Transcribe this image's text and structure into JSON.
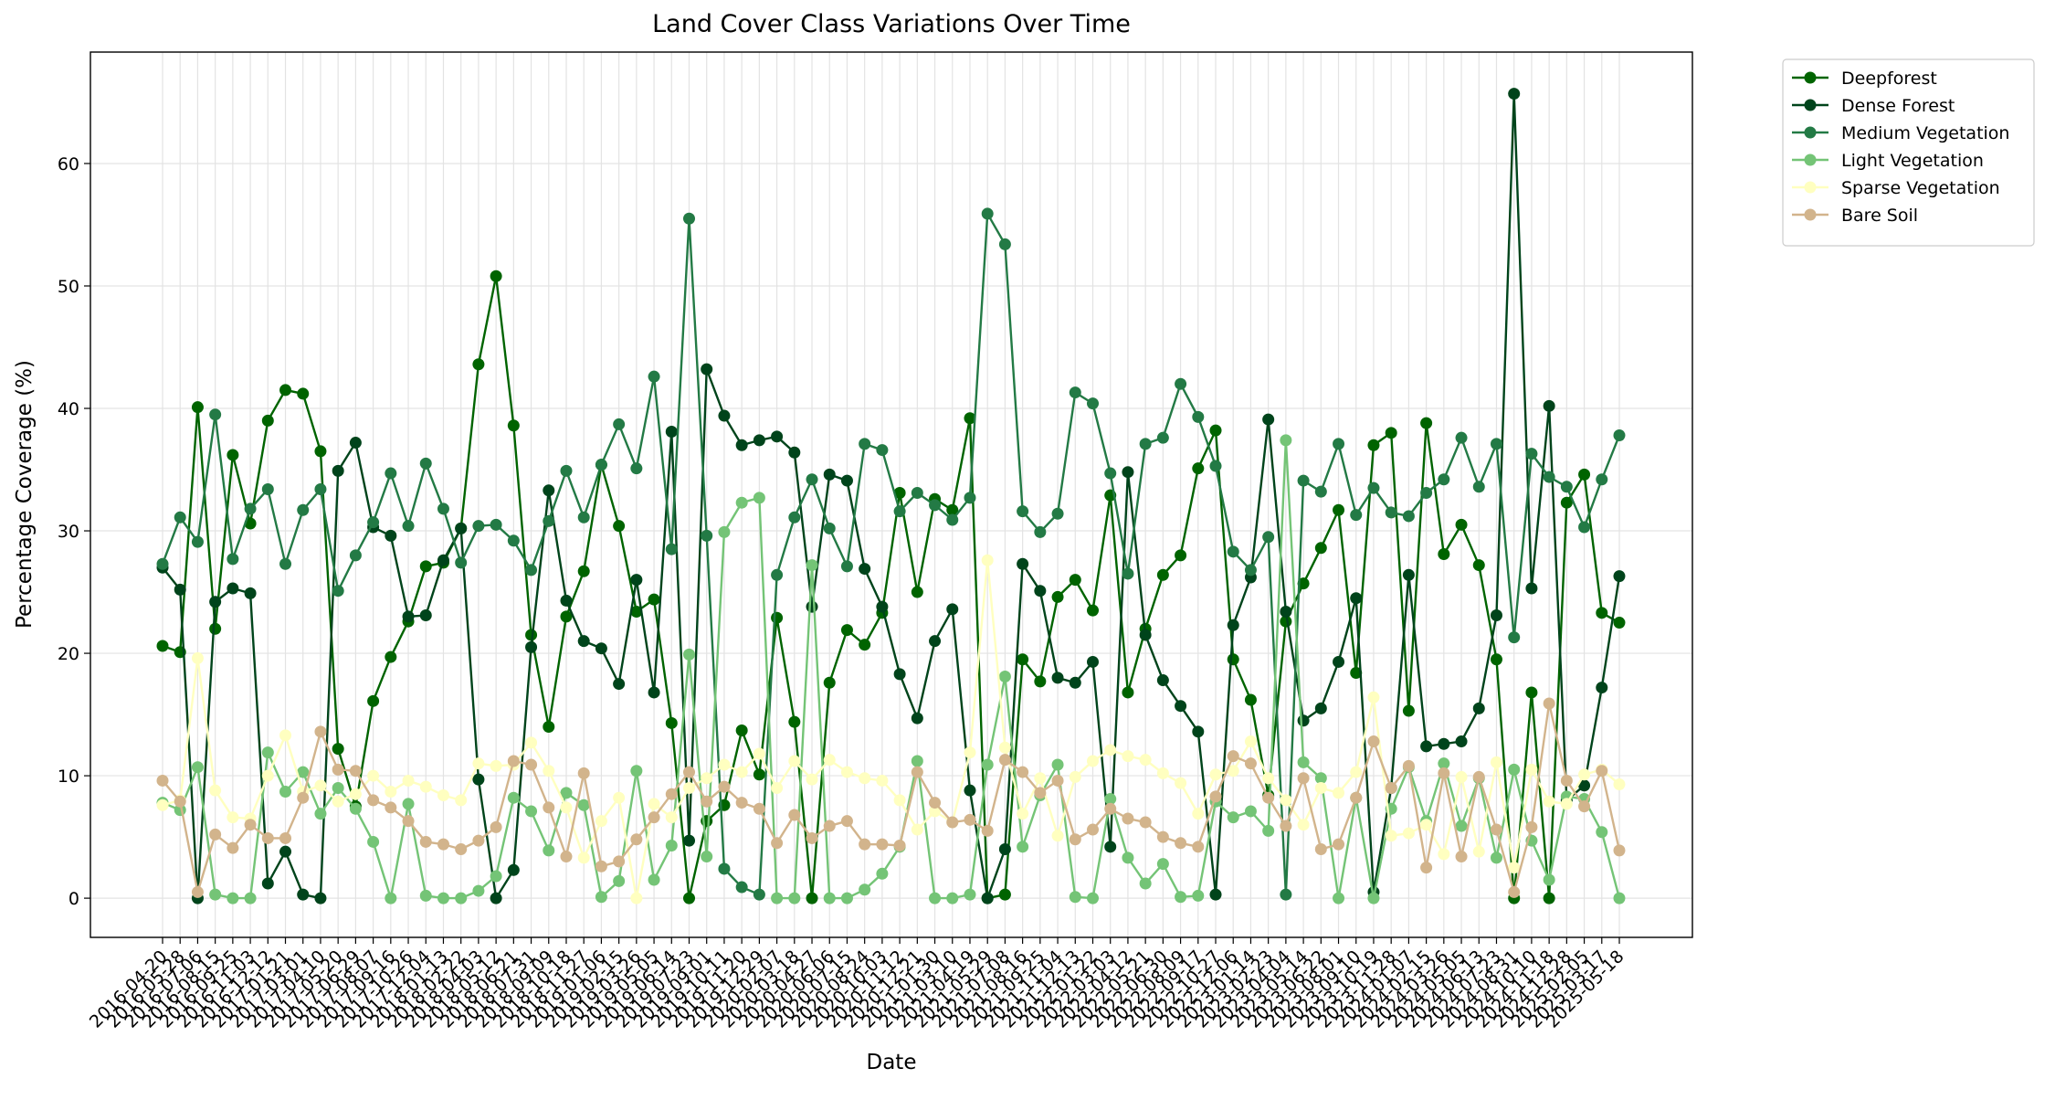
{
  "chart_data": {
    "type": "line",
    "title": "Land Cover Class Variations Over Time",
    "x_label": "Date",
    "y_label": "Percentage Coverage (%)",
    "categories": [
      "2016-04-20",
      "2016-05-28",
      "2016-07-06",
      "2016-08-15",
      "2016-09-25",
      "2016-11-03",
      "2016-12-12",
      "2017-01-21",
      "2017-03-01",
      "2017-04-10",
      "2017-05-20",
      "2017-06-29",
      "2017-08-07",
      "2017-09-16",
      "2017-10-26",
      "2017-12-04",
      "2018-01-13",
      "2018-02-22",
      "2018-04-03",
      "2018-05-12",
      "2018-06-21",
      "2018-07-31",
      "2018-09-09",
      "2018-10-18",
      "2018-11-27",
      "2019-01-06",
      "2019-02-15",
      "2019-03-26",
      "2019-05-05",
      "2019-06-14",
      "2019-07-23",
      "2019-09-01",
      "2019-10-11",
      "2019-11-20",
      "2019-12-29",
      "2020-02-07",
      "2020-03-18",
      "2020-04-27",
      "2020-06-06",
      "2020-07-15",
      "2020-08-24",
      "2020-10-03",
      "2020-11-12",
      "2020-12-21",
      "2021-01-30",
      "2021-03-10",
      "2021-04-19",
      "2021-05-29",
      "2021-07-08",
      "2021-08-16",
      "2021-09-25",
      "2021-11-04",
      "2021-12-13",
      "2022-01-22",
      "2022-03-03",
      "2022-04-12",
      "2022-05-21",
      "2022-06-30",
      "2022-08-09",
      "2022-09-17",
      "2022-10-27",
      "2022-12-06",
      "2023-01-14",
      "2023-02-23",
      "2023-04-04",
      "2023-05-14",
      "2023-06-22",
      "2023-08-01",
      "2023-09-10",
      "2023-10-19",
      "2023-11-28",
      "2024-01-07",
      "2024-02-15",
      "2024-03-26",
      "2024-05-05",
      "2024-06-13",
      "2024-07-23",
      "2024-08-31",
      "2024-10-10",
      "2024-11-18",
      "2024-12-28",
      "2025-02-05",
      "2025-03-17",
      "2025-05-18"
    ],
    "series": [
      {
        "name": "Deepforest",
        "color": "#006400",
        "values": [
          20.6,
          20.1,
          40.1,
          22.0,
          36.2,
          30.6,
          39.0,
          41.5,
          41.2,
          36.5,
          12.2,
          7.5,
          16.1,
          19.7,
          22.6,
          27.1,
          27.4,
          30.2,
          43.6,
          50.8,
          38.6,
          21.5,
          14.0,
          23.0,
          26.7,
          35.4,
          30.4,
          23.4,
          24.4,
          14.3,
          0,
          6.3,
          7.6,
          13.7,
          10.1,
          22.9,
          14.4,
          0,
          17.6,
          21.9,
          20.7,
          23.3,
          33.1,
          25.0,
          32.6,
          31.7,
          39.2,
          0,
          0.3,
          19.5,
          17.7,
          24.6,
          26.0,
          23.5,
          32.9,
          16.8,
          22.0,
          26.4,
          28.0,
          35.1,
          38.2,
          19.5,
          16.2,
          8.4,
          22.6,
          25.7,
          28.6,
          31.7,
          18.4,
          37.0,
          38.0,
          15.3,
          38.8,
          28.1,
          30.5,
          27.2,
          19.5,
          0,
          16.8,
          0,
          32.3,
          34.6,
          23.3,
          22.5
        ]
      },
      {
        "name": "Dense Forest",
        "color": "#00441b",
        "values": [
          27.0,
          25.2,
          0,
          24.2,
          25.3,
          24.9,
          1.2,
          3.8,
          0.3,
          0,
          34.9,
          37.2,
          30.3,
          29.6,
          23.0,
          23.1,
          27.6,
          30.2,
          9.7,
          0,
          2.3,
          20.5,
          33.3,
          24.3,
          21.0,
          20.4,
          17.5,
          26.0,
          16.8,
          38.1,
          4.7,
          43.2,
          39.4,
          37.0,
          37.4,
          37.7,
          36.4,
          23.8,
          34.6,
          34.1,
          26.9,
          23.8,
          18.3,
          14.7,
          21.0,
          23.6,
          8.8,
          0,
          4.0,
          27.3,
          25.1,
          18.0,
          17.6,
          19.3,
          4.2,
          34.8,
          21.5,
          17.8,
          15.7,
          13.6,
          0.3,
          22.3,
          26.2,
          39.1,
          23.4,
          14.5,
          15.5,
          19.3,
          24.5,
          0.5,
          9.0,
          26.4,
          12.4,
          12.6,
          12.8,
          15.5,
          23.1,
          65.7,
          25.3,
          40.2,
          8.0,
          9.2,
          17.2,
          26.3
        ]
      },
      {
        "name": "Medium Vegetation",
        "color": "#237a45",
        "values": [
          27.3,
          31.1,
          29.1,
          39.5,
          27.7,
          31.8,
          33.4,
          27.3,
          31.7,
          33.4,
          25.1,
          28.0,
          30.7,
          34.7,
          30.4,
          35.5,
          31.8,
          27.4,
          30.4,
          30.5,
          29.2,
          26.8,
          30.8,
          34.9,
          31.1,
          35.4,
          38.7,
          35.1,
          42.6,
          28.5,
          55.5,
          29.6,
          2.4,
          0.9,
          0.3,
          26.4,
          31.1,
          34.2,
          30.2,
          27.1,
          37.1,
          36.6,
          31.6,
          33.1,
          32.1,
          30.9,
          32.7,
          55.9,
          53.4,
          31.6,
          29.9,
          31.4,
          41.3,
          40.4,
          34.7,
          26.5,
          37.1,
          37.6,
          42.0,
          39.3,
          35.3,
          28.3,
          26.8,
          29.5,
          0.3,
          34.1,
          33.2,
          37.1,
          31.3,
          33.5,
          31.5,
          31.2,
          33.1,
          34.2,
          37.6,
          33.6,
          37.1,
          21.3,
          36.3,
          34.4,
          33.6,
          30.3,
          34.2,
          37.8
        ]
      },
      {
        "name": "Light Vegetation",
        "color": "#74c476",
        "values": [
          7.8,
          7.2,
          10.7,
          0.3,
          0,
          0,
          11.9,
          8.7,
          10.3,
          6.9,
          9.0,
          7.3,
          4.6,
          0,
          7.7,
          0.2,
          0,
          0,
          0.6,
          1.8,
          8.2,
          7.1,
          3.9,
          8.6,
          7.6,
          0.1,
          1.4,
          10.4,
          1.5,
          4.3,
          19.9,
          3.4,
          29.9,
          32.3,
          32.7,
          0,
          0,
          27.2,
          0,
          0,
          0.7,
          2.0,
          4.2,
          11.2,
          0,
          0,
          0.3,
          10.9,
          18.1,
          4.2,
          8.4,
          10.9,
          0.1,
          0,
          8.1,
          3.3,
          1.2,
          2.8,
          0.1,
          0.2,
          7.9,
          6.6,
          7.1,
          5.5,
          37.4,
          11.1,
          9.8,
          0,
          8.2,
          0,
          7.3,
          10.7,
          6.3,
          11.0,
          5.9,
          9.8,
          3.3,
          10.5,
          4.7,
          1.5,
          8.3,
          8.1,
          5.4,
          0
        ]
      },
      {
        "name": "Sparse Vegetation",
        "color": "#ffffc0",
        "values": [
          7.6,
          8.0,
          19.6,
          8.8,
          6.6,
          6.5,
          10.0,
          13.3,
          8.7,
          9.2,
          7.9,
          8.5,
          10.0,
          8.7,
          9.6,
          9.1,
          8.4,
          8.0,
          11.0,
          10.8,
          10.9,
          12.7,
          10.4,
          7.4,
          3.3,
          6.3,
          8.2,
          0,
          7.7,
          6.6,
          9.0,
          9.8,
          10.9,
          10.3,
          11.8,
          9.0,
          11.2,
          9.7,
          11.3,
          10.3,
          9.8,
          9.6,
          8.0,
          5.6,
          7.1,
          6.2,
          11.9,
          27.6,
          12.3,
          6.9,
          9.8,
          5.1,
          9.9,
          11.2,
          12.1,
          11.6,
          11.3,
          10.2,
          9.4,
          6.9,
          10.1,
          10.4,
          12.8,
          9.8,
          8.0,
          6.0,
          9.0,
          8.6,
          10.3,
          16.4,
          5.1,
          5.3,
          6.0,
          3.6,
          9.9,
          3.8,
          11.1,
          2.5,
          10.5,
          7.9,
          7.7,
          10.1,
          10.5,
          9.3
        ]
      },
      {
        "name": "Bare Soil",
        "color": "#d2b48c",
        "values": [
          9.6,
          7.9,
          0.5,
          5.2,
          4.1,
          6.0,
          4.9,
          4.9,
          8.2,
          13.6,
          10.5,
          10.4,
          8.0,
          7.4,
          6.3,
          4.6,
          4.4,
          4.0,
          4.7,
          5.8,
          11.2,
          10.9,
          7.4,
          3.4,
          10.2,
          2.6,
          3.0,
          4.8,
          6.6,
          8.5,
          10.3,
          7.9,
          9.1,
          7.8,
          7.3,
          4.5,
          6.8,
          4.9,
          5.9,
          6.3,
          4.4,
          4.4,
          4.3,
          10.3,
          7.8,
          6.2,
          6.4,
          5.5,
          11.3,
          10.3,
          8.6,
          9.6,
          4.8,
          5.6,
          7.3,
          6.5,
          6.2,
          5.0,
          4.5,
          4.2,
          8.3,
          11.6,
          11.0,
          8.2,
          5.9,
          9.8,
          4.0,
          4.4,
          8.2,
          12.8,
          9.0,
          10.8,
          2.5,
          10.2,
          3.4,
          9.9,
          5.6,
          0.5,
          5.8,
          15.9,
          9.6,
          7.5,
          10.4,
          3.9
        ]
      }
    ],
    "ylim": [
      -3.2,
      69.1
    ],
    "yticks": [
      0,
      10,
      20,
      30,
      40,
      50,
      60
    ],
    "grid": true,
    "legend": "outside-right"
  }
}
